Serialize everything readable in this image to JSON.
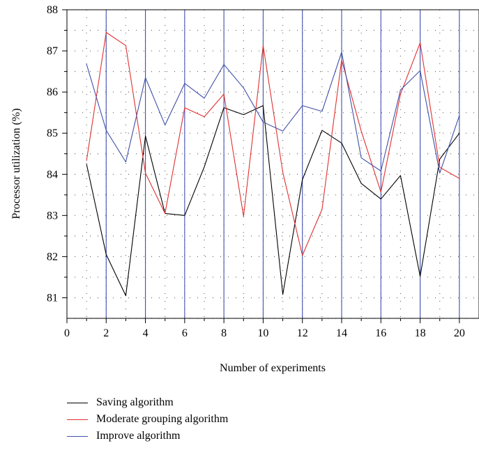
{
  "chart_data": {
    "type": "line",
    "title": "",
    "xlabel": "Number of experiments",
    "ylabel": "Processor utilization (%)",
    "xlim": [
      0,
      21
    ],
    "ylim": [
      80.5,
      88
    ],
    "x_ticks": [
      "0",
      "2",
      "4",
      "6",
      "8",
      "10",
      "12",
      "14",
      "16",
      "18",
      "20"
    ],
    "y_ticks": [
      "81",
      "82",
      "83",
      "84",
      "85",
      "86",
      "87",
      "88"
    ],
    "grid": "dotted",
    "vertical_gridlines_at": [
      2,
      4,
      6,
      8,
      10,
      12,
      14,
      16,
      18,
      20
    ],
    "x": [
      1,
      2,
      3,
      4,
      5,
      6,
      7,
      8,
      9,
      10,
      11,
      12,
      13,
      14,
      15,
      16,
      17,
      18,
      19,
      20
    ],
    "series": [
      {
        "name": "Saving algorithm",
        "color": "#000000",
        "values": [
          84.25,
          82.05,
          81.05,
          84.93,
          83.05,
          83.0,
          84.18,
          85.62,
          85.45,
          85.67,
          81.08,
          83.87,
          85.07,
          84.76,
          83.78,
          83.4,
          83.97,
          81.52,
          84.37,
          85.0
        ]
      },
      {
        "name": "Moderate grouping algorithm",
        "color": "#e03030",
        "values": [
          84.33,
          87.45,
          87.13,
          84.03,
          83.05,
          85.62,
          85.4,
          85.95,
          82.98,
          87.13,
          84.05,
          82.03,
          83.15,
          86.78,
          85.05,
          83.57,
          85.95,
          87.2,
          84.17,
          83.9
        ]
      },
      {
        "name": "Improve algorithm",
        "color": "#4050a8",
        "values": [
          86.68,
          85.07,
          84.3,
          86.35,
          85.2,
          86.21,
          85.85,
          86.67,
          86.1,
          85.27,
          85.05,
          85.67,
          85.53,
          86.97,
          84.4,
          84.08,
          86.05,
          86.52,
          84.03,
          85.43
        ]
      }
    ],
    "legend_position": "bottom-left"
  }
}
